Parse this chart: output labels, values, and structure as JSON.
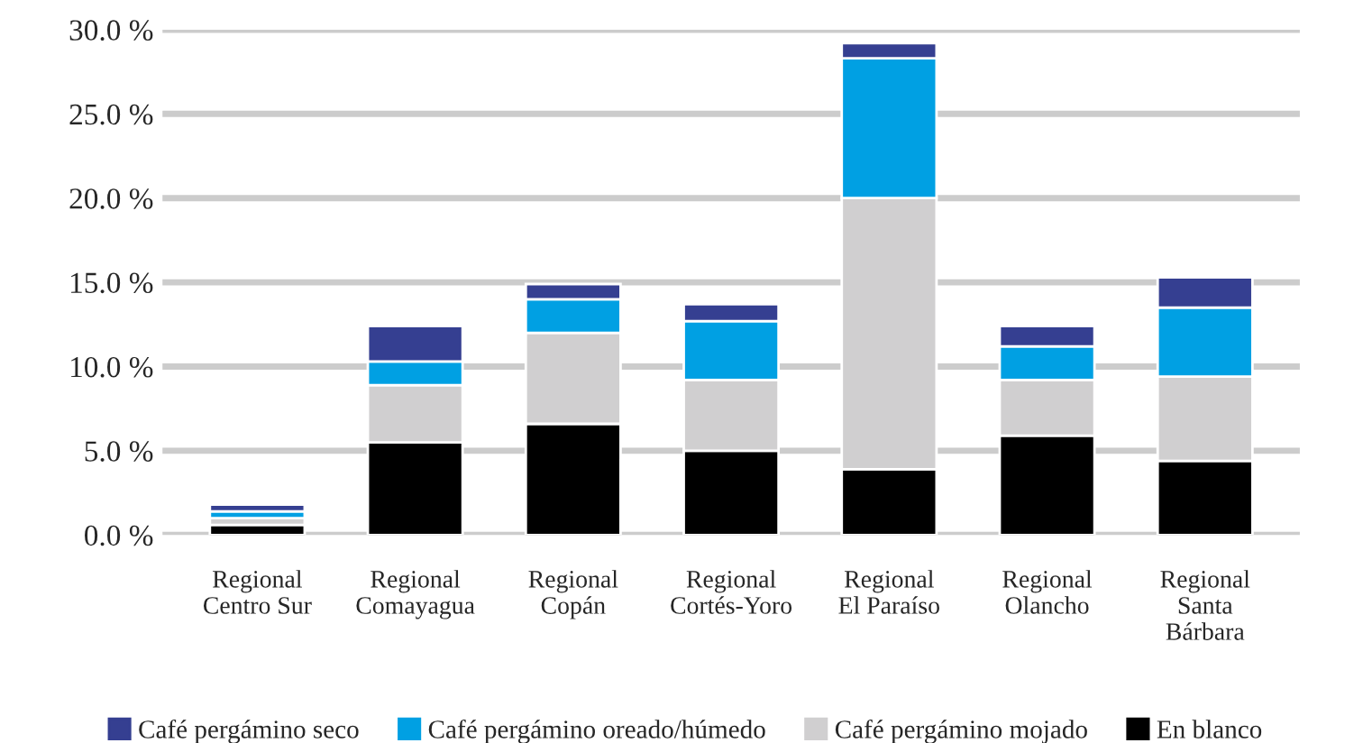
{
  "chart_data": {
    "type": "bar",
    "stacked": true,
    "categories": [
      "Regional\nCentro Sur",
      "Regional\nComayagua",
      "Regional\nCopán",
      "Regional\nCortés-Yoro",
      "Regional\nEl Paraíso",
      "Regional\nOlancho",
      "Regional\nSanta\nBárbara"
    ],
    "series": [
      {
        "name": "En blanco",
        "color": "#000000",
        "values": [
          0.6,
          5.5,
          6.6,
          5.0,
          3.9,
          5.9,
          4.4
        ]
      },
      {
        "name": "Café pergámino mojado",
        "color": "#d0cfd0",
        "values": [
          0.4,
          3.4,
          5.4,
          4.2,
          16.1,
          3.3,
          5.0
        ]
      },
      {
        "name": "Café pergámino oreado/húmedo",
        "color": "#00a0e3",
        "values": [
          0.4,
          1.4,
          2.0,
          3.5,
          8.3,
          2.0,
          4.1
        ]
      },
      {
        "name": "Café pergámino seco",
        "color": "#353f91",
        "values": [
          0.4,
          2.1,
          0.9,
          1.0,
          0.9,
          1.2,
          1.8
        ]
      }
    ],
    "ylim": [
      0,
      30
    ],
    "yticks": [
      {
        "value": 0,
        "label": "0.0 %"
      },
      {
        "value": 5,
        "label": "5.0 %"
      },
      {
        "value": 10,
        "label": "10.0 %"
      },
      {
        "value": 15,
        "label": "15.0 %"
      },
      {
        "value": 20,
        "label": "20.0 %"
      },
      {
        "value": 25,
        "label": "25.0 %"
      },
      {
        "value": 30,
        "label": "30.0 %"
      }
    ],
    "grid": "y",
    "legend": "bottom"
  }
}
